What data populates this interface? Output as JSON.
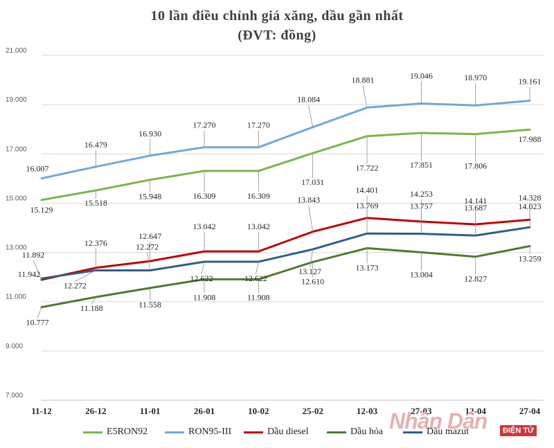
{
  "title_line1": "10 lần điều chỉnh giá xăng, dầu gần nhất",
  "title_line2": "(ĐVT: đồng)",
  "watermark": {
    "brand": "Nhân Dân",
    "badge": "ĐIỆN TỬ"
  },
  "chart_data": {
    "type": "line",
    "title": "10 lần điều chỉnh giá xăng, dầu gần nhất",
    "subtitle": "(ĐVT: đồng)",
    "categories": [
      "11-12",
      "26-12",
      "11-01",
      "26-01",
      "10-02",
      "25-02",
      "12-03",
      "27-03",
      "12-04",
      "27-04"
    ],
    "ylim": [
      7000,
      21000
    ],
    "yticks": [
      7000,
      9000,
      11000,
      13000,
      15000,
      17000,
      19000,
      21000
    ],
    "ytick_labels": [
      "7.000",
      "9.000",
      "11.000",
      "13.000",
      "15.000",
      "17.000",
      "19.000",
      "21.000"
    ],
    "grid": true,
    "legend_position": "bottom",
    "series": [
      {
        "name": "E5RON92",
        "color": "#7ab648",
        "values": [
          15129,
          15518,
          15948,
          16309,
          16309,
          17031,
          17722,
          17851,
          17806,
          17988
        ],
        "labels": [
          "15.129",
          "15.518",
          "15.948",
          "16.309",
          "16.309",
          "17.031",
          "17.722",
          "17.851",
          "17.806",
          "17.988"
        ]
      },
      {
        "name": "RON95-III",
        "color": "#6fa8dc",
        "values": [
          16007,
          16479,
          16930,
          17270,
          17270,
          18084,
          18881,
          19046,
          18970,
          19161
        ],
        "labels": [
          "16.007",
          "16.479",
          "16.930",
          "17.270",
          "17.270",
          "18.084",
          "18.881",
          "19.046",
          "18.970",
          "19.161"
        ]
      },
      {
        "name": "Dầu diesel",
        "color": "#c00000",
        "values": [
          11892,
          12376,
          12647,
          13042,
          13042,
          13843,
          14401,
          14253,
          14141,
          14328
        ],
        "labels": [
          "11.892",
          "12.376",
          "12.647",
          "13.042",
          "13.042",
          "13.843",
          "14.401",
          "14.253",
          "14.141",
          "14.328"
        ]
      },
      {
        "name": "Dầu hỏa",
        "color": "#4e7a2e",
        "values": [
          10777,
          11188,
          11558,
          11908,
          11908,
          12610,
          13173,
          13004,
          12827,
          13259
        ],
        "labels": [
          "10.777",
          "11.188",
          "11.558",
          "11.908",
          "11.908",
          "12.610",
          "13.173",
          "13.004",
          "12.827",
          "13.259"
        ]
      },
      {
        "name": "Dầu mazut",
        "color": "#2f5d8a",
        "values": [
          11942,
          12272,
          12272,
          12622,
          12622,
          13127,
          13769,
          13757,
          13687,
          14023
        ],
        "labels": [
          "11.942",
          "12.272",
          "12.272",
          "12.622",
          "12.622",
          "13.127",
          "13.769",
          "13.757",
          "13.687",
          "14.023"
        ]
      }
    ]
  }
}
